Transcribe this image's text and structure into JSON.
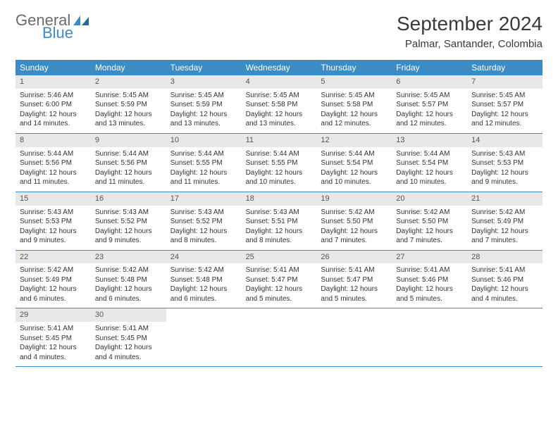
{
  "logo": {
    "text1": "General",
    "text2": "Blue",
    "icon_color": "#3b8bc4"
  },
  "title": "September 2024",
  "location": "Palmar, Santander, Colombia",
  "colors": {
    "header_bg": "#3b8bc4",
    "header_text": "#ffffff",
    "daynum_bg": "#e8e8e8",
    "border": "#3b8bc4",
    "text": "#333333",
    "logo_gray": "#6b6b6b"
  },
  "day_names": [
    "Sunday",
    "Monday",
    "Tuesday",
    "Wednesday",
    "Thursday",
    "Friday",
    "Saturday"
  ],
  "weeks": [
    [
      {
        "n": "1",
        "sr": "Sunrise: 5:46 AM",
        "ss": "Sunset: 6:00 PM",
        "dl1": "Daylight: 12 hours",
        "dl2": "and 14 minutes."
      },
      {
        "n": "2",
        "sr": "Sunrise: 5:45 AM",
        "ss": "Sunset: 5:59 PM",
        "dl1": "Daylight: 12 hours",
        "dl2": "and 13 minutes."
      },
      {
        "n": "3",
        "sr": "Sunrise: 5:45 AM",
        "ss": "Sunset: 5:59 PM",
        "dl1": "Daylight: 12 hours",
        "dl2": "and 13 minutes."
      },
      {
        "n": "4",
        "sr": "Sunrise: 5:45 AM",
        "ss": "Sunset: 5:58 PM",
        "dl1": "Daylight: 12 hours",
        "dl2": "and 13 minutes."
      },
      {
        "n": "5",
        "sr": "Sunrise: 5:45 AM",
        "ss": "Sunset: 5:58 PM",
        "dl1": "Daylight: 12 hours",
        "dl2": "and 12 minutes."
      },
      {
        "n": "6",
        "sr": "Sunrise: 5:45 AM",
        "ss": "Sunset: 5:57 PM",
        "dl1": "Daylight: 12 hours",
        "dl2": "and 12 minutes."
      },
      {
        "n": "7",
        "sr": "Sunrise: 5:45 AM",
        "ss": "Sunset: 5:57 PM",
        "dl1": "Daylight: 12 hours",
        "dl2": "and 12 minutes."
      }
    ],
    [
      {
        "n": "8",
        "sr": "Sunrise: 5:44 AM",
        "ss": "Sunset: 5:56 PM",
        "dl1": "Daylight: 12 hours",
        "dl2": "and 11 minutes."
      },
      {
        "n": "9",
        "sr": "Sunrise: 5:44 AM",
        "ss": "Sunset: 5:56 PM",
        "dl1": "Daylight: 12 hours",
        "dl2": "and 11 minutes."
      },
      {
        "n": "10",
        "sr": "Sunrise: 5:44 AM",
        "ss": "Sunset: 5:55 PM",
        "dl1": "Daylight: 12 hours",
        "dl2": "and 11 minutes."
      },
      {
        "n": "11",
        "sr": "Sunrise: 5:44 AM",
        "ss": "Sunset: 5:55 PM",
        "dl1": "Daylight: 12 hours",
        "dl2": "and 10 minutes."
      },
      {
        "n": "12",
        "sr": "Sunrise: 5:44 AM",
        "ss": "Sunset: 5:54 PM",
        "dl1": "Daylight: 12 hours",
        "dl2": "and 10 minutes."
      },
      {
        "n": "13",
        "sr": "Sunrise: 5:44 AM",
        "ss": "Sunset: 5:54 PM",
        "dl1": "Daylight: 12 hours",
        "dl2": "and 10 minutes."
      },
      {
        "n": "14",
        "sr": "Sunrise: 5:43 AM",
        "ss": "Sunset: 5:53 PM",
        "dl1": "Daylight: 12 hours",
        "dl2": "and 9 minutes."
      }
    ],
    [
      {
        "n": "15",
        "sr": "Sunrise: 5:43 AM",
        "ss": "Sunset: 5:53 PM",
        "dl1": "Daylight: 12 hours",
        "dl2": "and 9 minutes."
      },
      {
        "n": "16",
        "sr": "Sunrise: 5:43 AM",
        "ss": "Sunset: 5:52 PM",
        "dl1": "Daylight: 12 hours",
        "dl2": "and 9 minutes."
      },
      {
        "n": "17",
        "sr": "Sunrise: 5:43 AM",
        "ss": "Sunset: 5:52 PM",
        "dl1": "Daylight: 12 hours",
        "dl2": "and 8 minutes."
      },
      {
        "n": "18",
        "sr": "Sunrise: 5:43 AM",
        "ss": "Sunset: 5:51 PM",
        "dl1": "Daylight: 12 hours",
        "dl2": "and 8 minutes."
      },
      {
        "n": "19",
        "sr": "Sunrise: 5:42 AM",
        "ss": "Sunset: 5:50 PM",
        "dl1": "Daylight: 12 hours",
        "dl2": "and 7 minutes."
      },
      {
        "n": "20",
        "sr": "Sunrise: 5:42 AM",
        "ss": "Sunset: 5:50 PM",
        "dl1": "Daylight: 12 hours",
        "dl2": "and 7 minutes."
      },
      {
        "n": "21",
        "sr": "Sunrise: 5:42 AM",
        "ss": "Sunset: 5:49 PM",
        "dl1": "Daylight: 12 hours",
        "dl2": "and 7 minutes."
      }
    ],
    [
      {
        "n": "22",
        "sr": "Sunrise: 5:42 AM",
        "ss": "Sunset: 5:49 PM",
        "dl1": "Daylight: 12 hours",
        "dl2": "and 6 minutes."
      },
      {
        "n": "23",
        "sr": "Sunrise: 5:42 AM",
        "ss": "Sunset: 5:48 PM",
        "dl1": "Daylight: 12 hours",
        "dl2": "and 6 minutes."
      },
      {
        "n": "24",
        "sr": "Sunrise: 5:42 AM",
        "ss": "Sunset: 5:48 PM",
        "dl1": "Daylight: 12 hours",
        "dl2": "and 6 minutes."
      },
      {
        "n": "25",
        "sr": "Sunrise: 5:41 AM",
        "ss": "Sunset: 5:47 PM",
        "dl1": "Daylight: 12 hours",
        "dl2": "and 5 minutes."
      },
      {
        "n": "26",
        "sr": "Sunrise: 5:41 AM",
        "ss": "Sunset: 5:47 PM",
        "dl1": "Daylight: 12 hours",
        "dl2": "and 5 minutes."
      },
      {
        "n": "27",
        "sr": "Sunrise: 5:41 AM",
        "ss": "Sunset: 5:46 PM",
        "dl1": "Daylight: 12 hours",
        "dl2": "and 5 minutes."
      },
      {
        "n": "28",
        "sr": "Sunrise: 5:41 AM",
        "ss": "Sunset: 5:46 PM",
        "dl1": "Daylight: 12 hours",
        "dl2": "and 4 minutes."
      }
    ],
    [
      {
        "n": "29",
        "sr": "Sunrise: 5:41 AM",
        "ss": "Sunset: 5:45 PM",
        "dl1": "Daylight: 12 hours",
        "dl2": "and 4 minutes."
      },
      {
        "n": "30",
        "sr": "Sunrise: 5:41 AM",
        "ss": "Sunset: 5:45 PM",
        "dl1": "Daylight: 12 hours",
        "dl2": "and 4 minutes."
      },
      null,
      null,
      null,
      null,
      null
    ]
  ]
}
